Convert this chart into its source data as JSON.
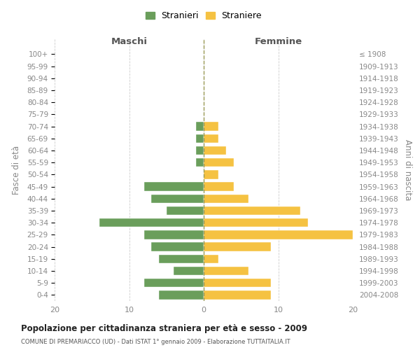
{
  "age_groups": [
    "0-4",
    "5-9",
    "10-14",
    "15-19",
    "20-24",
    "25-29",
    "30-34",
    "35-39",
    "40-44",
    "45-49",
    "50-54",
    "55-59",
    "60-64",
    "65-69",
    "70-74",
    "75-79",
    "80-84",
    "85-89",
    "90-94",
    "95-99",
    "100+"
  ],
  "birth_years": [
    "2004-2008",
    "1999-2003",
    "1994-1998",
    "1989-1993",
    "1984-1988",
    "1979-1983",
    "1974-1978",
    "1969-1973",
    "1964-1968",
    "1959-1963",
    "1954-1958",
    "1949-1953",
    "1944-1948",
    "1939-1943",
    "1934-1938",
    "1929-1933",
    "1924-1928",
    "1919-1923",
    "1914-1918",
    "1909-1913",
    "≤ 1908"
  ],
  "maschi": [
    6,
    8,
    4,
    6,
    7,
    8,
    14,
    5,
    7,
    8,
    0,
    1,
    1,
    1,
    1,
    0,
    0,
    0,
    0,
    0,
    0
  ],
  "femmine": [
    9,
    9,
    6,
    2,
    9,
    20,
    14,
    13,
    6,
    4,
    2,
    4,
    3,
    2,
    2,
    0,
    0,
    0,
    0,
    0,
    0
  ],
  "color_maschi": "#6a9e5b",
  "color_femmine": "#f5c242",
  "title": "Popolazione per cittadinanza straniera per età e sesso - 2009",
  "subtitle": "COMUNE DI PREMARIACCO (UD) - Dati ISTAT 1° gennaio 2009 - Elaborazione TUTTAITALIA.IT",
  "xlabel_left": "Maschi",
  "xlabel_right": "Femmine",
  "ylabel_left": "Fasce di età",
  "ylabel_right": "Anni di nascita",
  "xlim": 20,
  "legend_maschi": "Stranieri",
  "legend_femmine": "Straniere",
  "background_color": "#ffffff",
  "grid_color": "#cccccc"
}
